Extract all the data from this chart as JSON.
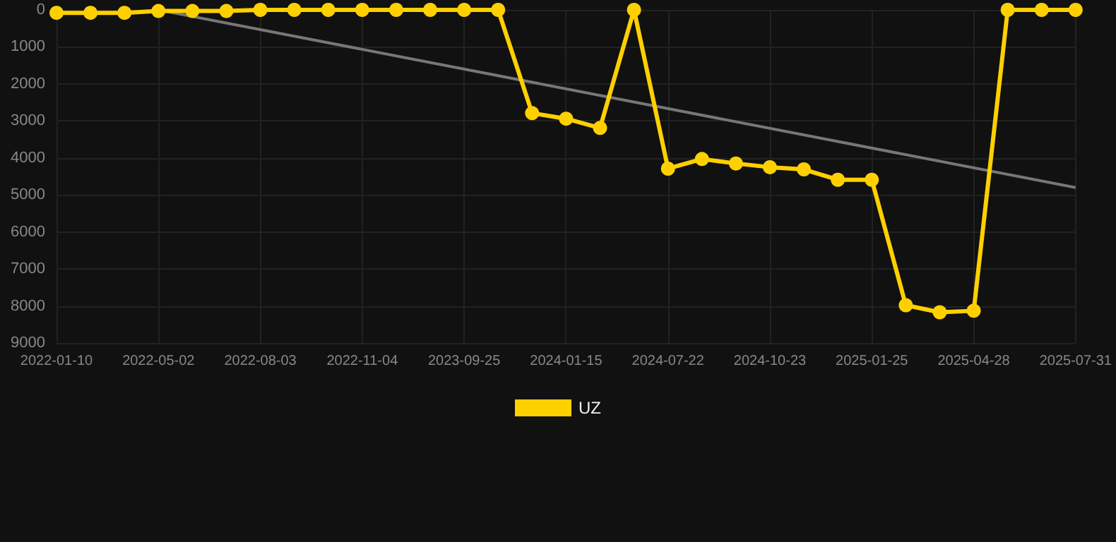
{
  "chart_data": {
    "type": "line",
    "categories": [
      "2022-01-10",
      null,
      null,
      "2022-05-02",
      null,
      null,
      "2022-08-03",
      null,
      null,
      "2022-11-04",
      null,
      null,
      "2023-09-25",
      null,
      null,
      "2024-01-15",
      null,
      null,
      "2024-07-22",
      null,
      null,
      "2024-10-23",
      null,
      null,
      "2025-01-25",
      null,
      null,
      "2025-04-28",
      null,
      null,
      "2025-07-31"
    ],
    "series": [
      {
        "name": "UZ",
        "color": "#ffd000",
        "values": [
          80,
          80,
          80,
          30,
          30,
          30,
          0,
          0,
          0,
          0,
          0,
          0,
          0,
          0,
          2790,
          2940,
          3190,
          0,
          4290,
          4030,
          4150,
          4250,
          4310,
          4590,
          4590,
          7980,
          8170,
          8130,
          0,
          0,
          0
        ]
      },
      {
        "color": "#777777",
        "marker": "none",
        "values": [
          null,
          null,
          null,
          0,
          null,
          null,
          null,
          null,
          null,
          null,
          null,
          null,
          null,
          null,
          null,
          null,
          null,
          null,
          null,
          null,
          null,
          null,
          null,
          null,
          null,
          null,
          null,
          null,
          null,
          null,
          4800
        ]
      }
    ],
    "ylim": [
      9000,
      0
    ],
    "yticks": [
      0,
      1000,
      2000,
      3000,
      4000,
      5000,
      6000,
      7000,
      8000,
      9000
    ],
    "grid": true,
    "legend": "bottom",
    "marker": "circle"
  }
}
